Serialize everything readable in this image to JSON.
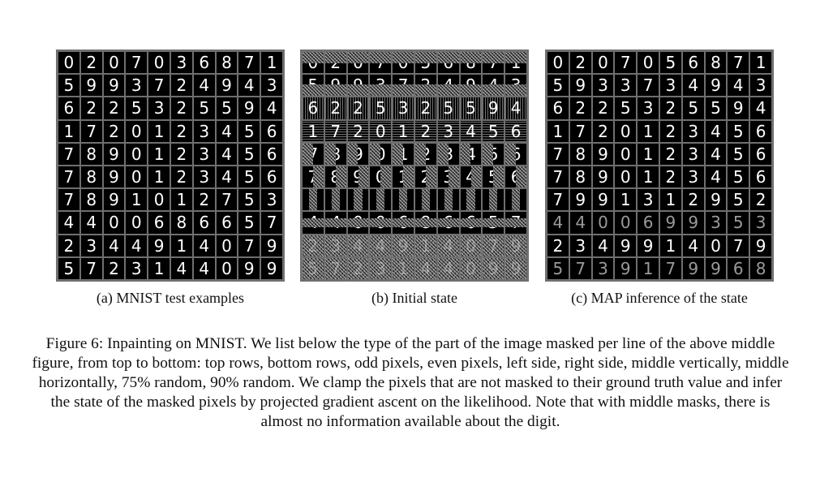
{
  "figure": {
    "panels": [
      {
        "id": "a",
        "caption": "(a) MNIST test examples",
        "rows": [
          "0207036871",
          "5993724943",
          "6225325594",
          "1720123456",
          "7890123456",
          "7890123456",
          "7891012753",
          "4400686657",
          "2344914079",
          "5723144099"
        ]
      },
      {
        "id": "b",
        "caption": "(b) Initial state",
        "rows": [
          "0207056871",
          "5993724943",
          "6225325594",
          "1720123456",
          "7890123456",
          "7890123456",
          "7891012753",
          "4400686657",
          "2344914079",
          "5723144099"
        ]
      },
      {
        "id": "c",
        "caption": "(c) MAP inference of the state",
        "rows": [
          "0207056871",
          "5933734943",
          "6225325594",
          "1720123456",
          "7890123456",
          "7890123456",
          "7991312952",
          "4400699353",
          "2349914079",
          "5739179968"
        ]
      }
    ],
    "caption": "Figure 6: Inpainting on MNIST. We list below the type of the part of the image masked per line of the above middle figure, from top to bottom: top rows, bottom rows, odd pixels, even pixels, left side, right side, middle vertically, middle horizontally, 75% random, 90% random. We clamp the pixels that are not masked to their ground truth value and infer the state of the masked pixels by projected gradient ascent on the likelihood. Note that with middle masks, there is almost no information available about the digit."
  }
}
